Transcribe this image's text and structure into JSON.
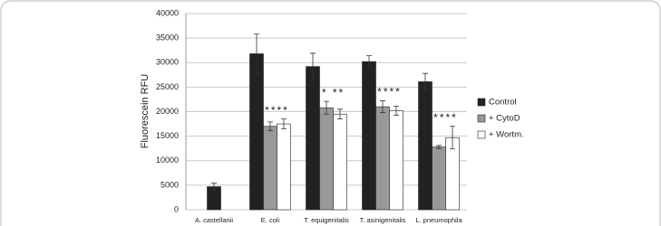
{
  "chart_data": {
    "type": "bar",
    "ylabel": "Fluorescein RFU",
    "categories": [
      "A. castellanii",
      "E. coli",
      "T. equigenitalis",
      "T. asinigenitalis",
      "L. pneumophila"
    ],
    "series": [
      {
        "name": "Control",
        "color": "#222222",
        "values": [
          4700,
          31800,
          29200,
          30200,
          26100
        ],
        "errors": [
          700,
          4000,
          2700,
          1200,
          1700
        ]
      },
      {
        "name": "+ CytoD",
        "color": "#999999",
        "values": [
          null,
          17000,
          20800,
          21000,
          12800
        ],
        "errors": [
          null,
          900,
          1300,
          1200,
          300
        ]
      },
      {
        "name": "+ Wortm.",
        "color": "#ffffff",
        "values": [
          null,
          17500,
          19500,
          20200,
          14700
        ],
        "errors": [
          null,
          1000,
          1000,
          900,
          2300
        ]
      }
    ],
    "annotations": [
      {
        "category": 1,
        "text": "****"
      },
      {
        "category": 2,
        "text": "* **"
      },
      {
        "category": 3,
        "text": "****"
      },
      {
        "category": 4,
        "text": "****"
      }
    ],
    "ylim": [
      0,
      40000
    ],
    "yticks": [
      0,
      5000,
      10000,
      15000,
      20000,
      25000,
      30000,
      35000,
      40000
    ],
    "grid": true
  }
}
